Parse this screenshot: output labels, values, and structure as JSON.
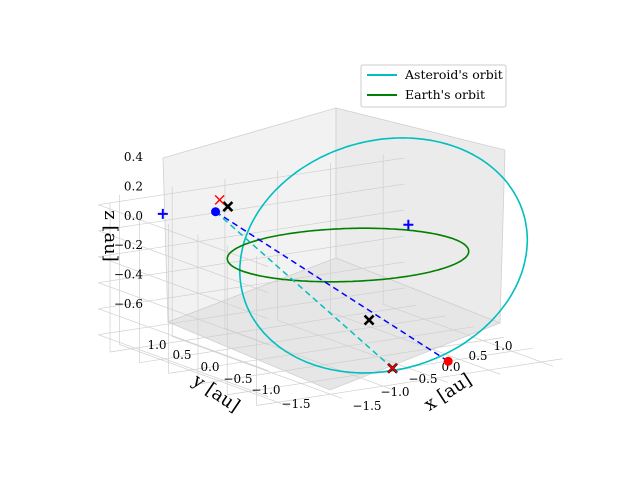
{
  "chart_data": {
    "type": "3d-line",
    "title": "",
    "xlabel": "x [au]",
    "ylabel": "y [au]",
    "zlabel": "z [au]",
    "xticks": [
      "−1.5",
      "−1.0",
      "−0.5",
      "0.0",
      "0.5",
      "1.0"
    ],
    "yticks": [
      "1.0",
      "0.5",
      "0.0",
      "−0.5",
      "−1.0",
      "−1.5"
    ],
    "zticks": [
      "0.4",
      "0.2",
      "0.0",
      "−0.2",
      "−0.4",
      "−0.6"
    ],
    "xlim": [
      -1.7,
      1.2
    ],
    "ylim": [
      -1.7,
      1.2
    ],
    "zlim": [
      -0.7,
      0.45
    ],
    "grid": true,
    "legend_position": "top-right",
    "series": [
      {
        "name": "Asteroid's orbit",
        "color": "#00bfbf",
        "style": "solid",
        "curve": "ellipse",
        "semi_major_au": 1.2,
        "eccentricity": 0.25,
        "inclination_deg": 38,
        "long_asc_node_deg": 320,
        "arg_periapsis_deg": 180
      },
      {
        "name": "Earth's orbit",
        "color": "#008000",
        "style": "solid",
        "curve": "ellipse",
        "semi_major_au": 1.0,
        "eccentricity": 0.0,
        "inclination_deg": 0,
        "long_asc_node_deg": 0,
        "arg_periapsis_deg": 0
      }
    ],
    "connectors": [
      {
        "color": "#0000ff",
        "style": "dashed",
        "from": [
          -0.95,
          0.55,
          0.36
        ],
        "to": [
          0.2,
          -1.35,
          -0.62
        ]
      },
      {
        "color": "#00bfbf",
        "style": "dashed",
        "from": [
          -0.95,
          0.55,
          0.36
        ],
        "to": [
          -0.3,
          -1.3,
          -0.62
        ]
      }
    ],
    "markers": [
      {
        "symbol": "dot",
        "color": "#0000ff",
        "point": [
          -0.95,
          0.55,
          0.36
        ]
      },
      {
        "symbol": "dot",
        "color": "#ff0000",
        "point": [
          0.2,
          -1.35,
          -0.62
        ]
      },
      {
        "symbol": "plus",
        "color": "#0000ff",
        "point": [
          -1.2,
          1.0,
          0.3
        ]
      },
      {
        "symbol": "plus",
        "color": "#0000ff",
        "point": [
          0.6,
          0.05,
          0.15
        ]
      },
      {
        "symbol": "x",
        "color": "#000000",
        "point": [
          -0.75,
          0.7,
          0.35
        ]
      },
      {
        "symbol": "x",
        "color": "#000000",
        "point": [
          -0.05,
          -0.45,
          -0.42
        ]
      },
      {
        "symbol": "x",
        "color": "#000000",
        "point": [
          -0.3,
          -1.3,
          -0.62
        ]
      },
      {
        "symbol": "x",
        "color": "#ff0000",
        "point": [
          -0.3,
          -1.3,
          -0.62
        ]
      },
      {
        "symbol": "x",
        "color": "#ff0000",
        "point": [
          -0.8,
          0.75,
          0.4
        ]
      }
    ]
  }
}
